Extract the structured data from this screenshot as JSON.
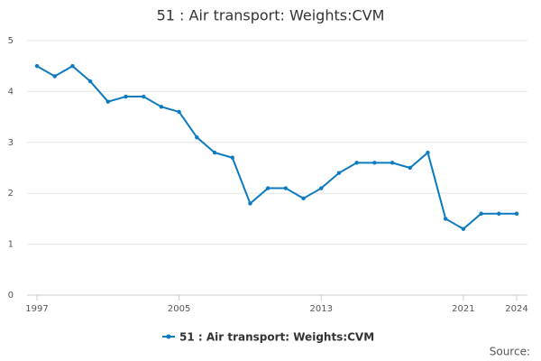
{
  "chart_data": {
    "type": "line",
    "title": "51 : Air transport: Weights:CVM",
    "x": [
      1997,
      1998,
      1999,
      2000,
      2001,
      2002,
      2003,
      2004,
      2005,
      2006,
      2007,
      2008,
      2009,
      2010,
      2011,
      2012,
      2013,
      2014,
      2015,
      2016,
      2017,
      2018,
      2019,
      2020,
      2021,
      2022,
      2023,
      2024
    ],
    "series": [
      {
        "name": "51 : Air transport: Weights:CVM",
        "color": "#0b7ac0",
        "values": [
          4.5,
          4.3,
          4.5,
          4.2,
          3.8,
          3.9,
          3.9,
          3.7,
          3.6,
          3.1,
          2.8,
          2.7,
          1.8,
          2.1,
          2.1,
          1.9,
          2.1,
          2.4,
          2.6,
          2.6,
          2.6,
          2.5,
          2.8,
          1.5,
          1.3,
          1.6,
          1.6,
          1.6
        ]
      }
    ],
    "xlim": [
      1997,
      2024
    ],
    "xticks": [
      1997,
      2005,
      2013,
      2021,
      2024
    ],
    "ylim": [
      0,
      5
    ],
    "yticks": [
      0,
      1,
      2,
      3,
      4,
      5
    ],
    "grid": true,
    "legend": "bottom",
    "source": "Source:"
  }
}
